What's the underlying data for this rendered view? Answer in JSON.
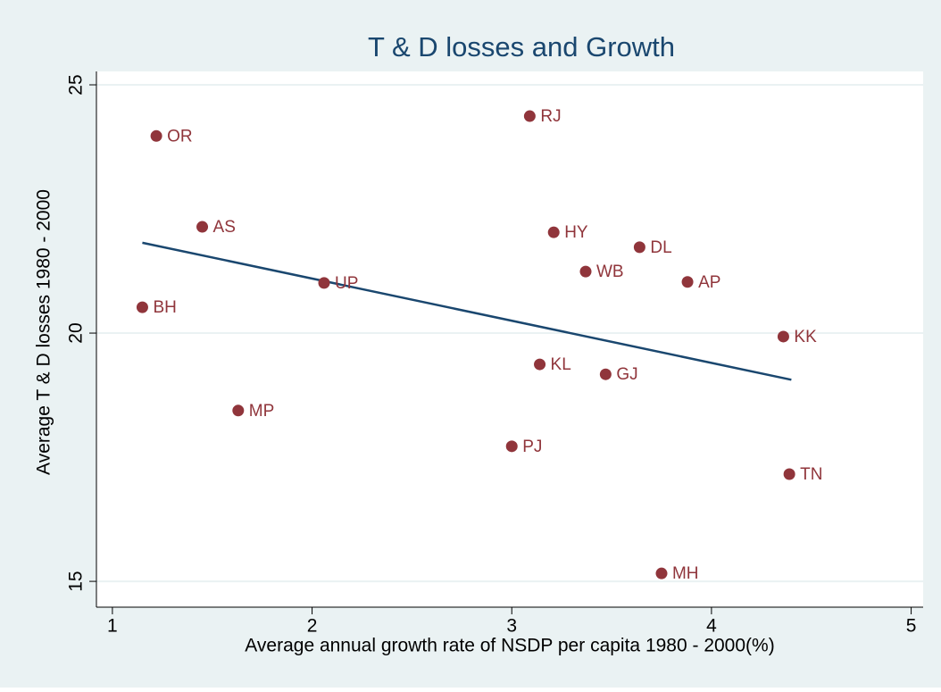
{
  "chart_data": {
    "type": "scatter",
    "title": "T & D losses and Growth",
    "xlabel": "Average annual growth rate of NSDP per capita 1980 - 2000(%)",
    "ylabel": "Average T & D losses 1980 - 2000",
    "point_labels": [
      "OR",
      "RJ",
      "AS",
      "HY",
      "DL",
      "WB",
      "UP",
      "AP",
      "BH",
      "KK",
      "KL",
      "GJ",
      "MP",
      "PJ",
      "TN",
      "MH"
    ],
    "x": [
      1.22,
      3.09,
      1.45,
      3.21,
      3.64,
      3.37,
      2.06,
      3.88,
      1.15,
      4.36,
      3.14,
      3.47,
      1.63,
      3.0,
      4.39,
      3.75
    ],
    "y": [
      23.97,
      24.37,
      22.14,
      22.03,
      21.73,
      21.24,
      21.01,
      21.03,
      20.52,
      19.93,
      19.37,
      19.17,
      18.44,
      17.72,
      17.16,
      15.16
    ],
    "color": "#90353b",
    "fit_line": {
      "x": [
        1.15,
        4.4
      ],
      "y": [
        21.82,
        19.06
      ],
      "color": "#1a476f"
    },
    "xlim": [
      0.92,
      5.06
    ],
    "ylim": [
      14.48,
      25.27
    ],
    "xticks": [
      1,
      2,
      3,
      4,
      5
    ],
    "yticks": [
      15,
      20,
      25
    ],
    "grid": true
  }
}
